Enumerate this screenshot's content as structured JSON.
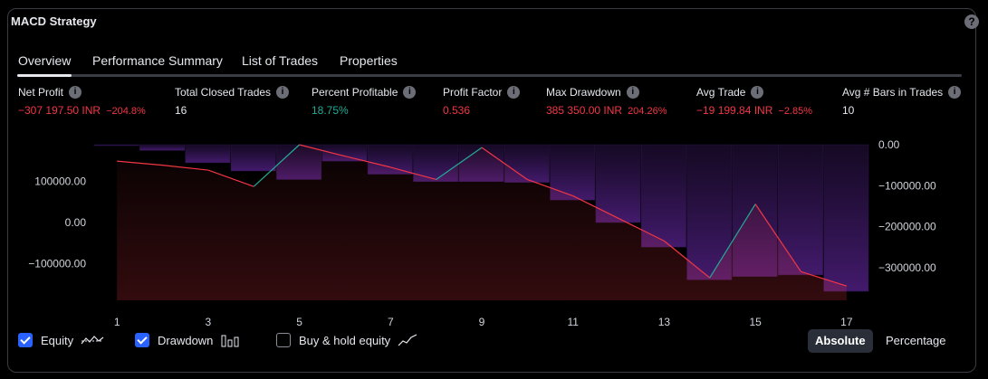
{
  "window": {
    "title": "MACD Strategy",
    "help_icon": "question-icon"
  },
  "tabs": [
    {
      "label": "Overview",
      "active": true
    },
    {
      "label": "Performance Summary",
      "active": false
    },
    {
      "label": "List of Trades",
      "active": false
    },
    {
      "label": "Properties",
      "active": false
    }
  ],
  "metrics": [
    {
      "label": "Net Profit",
      "value": "−307 197.50 INR",
      "extra": "−204.8%",
      "color": "red"
    },
    {
      "label": "Total Closed Trades",
      "value": "16",
      "extra": "",
      "color": "white"
    },
    {
      "label": "Percent Profitable",
      "value": "18.75%",
      "extra": "",
      "color": "green"
    },
    {
      "label": "Profit Factor",
      "value": "0.536",
      "extra": "",
      "color": "red"
    },
    {
      "label": "Max Drawdown",
      "value": "385 350.00 INR",
      "extra": "204.26%",
      "color": "red"
    },
    {
      "label": "Avg Trade",
      "value": "−19 199.84 INR",
      "extra": "−2.85%",
      "color": "red"
    },
    {
      "label": "Avg # Bars in Trades",
      "value": "10",
      "extra": "",
      "color": "white"
    }
  ],
  "colors": {
    "equity_up": "#22ab94",
    "equity_down": "#f23645",
    "drawdown": "#7e57c2",
    "accent": "#2962ff"
  },
  "chart_data": {
    "type": "line",
    "x_ticks": [
      "1",
      "3",
      "5",
      "7",
      "9",
      "11",
      "13",
      "15",
      "17"
    ],
    "left_ticks": [
      "100000.00",
      "0.00",
      "−100000.00"
    ],
    "right_ticks": [
      "0.00",
      "−100000.00",
      "−200000.00",
      "−300000.00"
    ],
    "left_ylim": [
      -190000,
      190000
    ],
    "right_ylim": [
      -380000,
      0
    ],
    "x": [
      1,
      2,
      3,
      4,
      5,
      6,
      7,
      8,
      9,
      10,
      11,
      12,
      13,
      14,
      15,
      16,
      17
    ],
    "series": [
      {
        "name": "Equity",
        "axis": "left",
        "values": [
          150000,
          140000,
          128000,
          88000,
          190000,
          162000,
          135000,
          105000,
          183000,
          105000,
          65000,
          10000,
          -45000,
          -135000,
          45000,
          -120000,
          -155000
        ]
      },
      {
        "name": "Drawdown",
        "axis": "right",
        "values": [
          -2000,
          -14000,
          -44000,
          -64000,
          -85000,
          -40000,
          -72000,
          -90000,
          -90000,
          -92000,
          -135000,
          -190000,
          -250000,
          -330000,
          -322000,
          -318000,
          -358000
        ]
      }
    ],
    "grid": false
  },
  "legend": [
    {
      "label": "Equity",
      "checked": true,
      "icon": "equity-line-icon"
    },
    {
      "label": "Drawdown",
      "checked": true,
      "icon": "drawdown-bars-icon"
    },
    {
      "label": "Buy & hold equity",
      "checked": false,
      "icon": "buy-hold-line-icon"
    }
  ],
  "modes": [
    {
      "label": "Absolute",
      "active": true
    },
    {
      "label": "Percentage",
      "active": false
    }
  ]
}
